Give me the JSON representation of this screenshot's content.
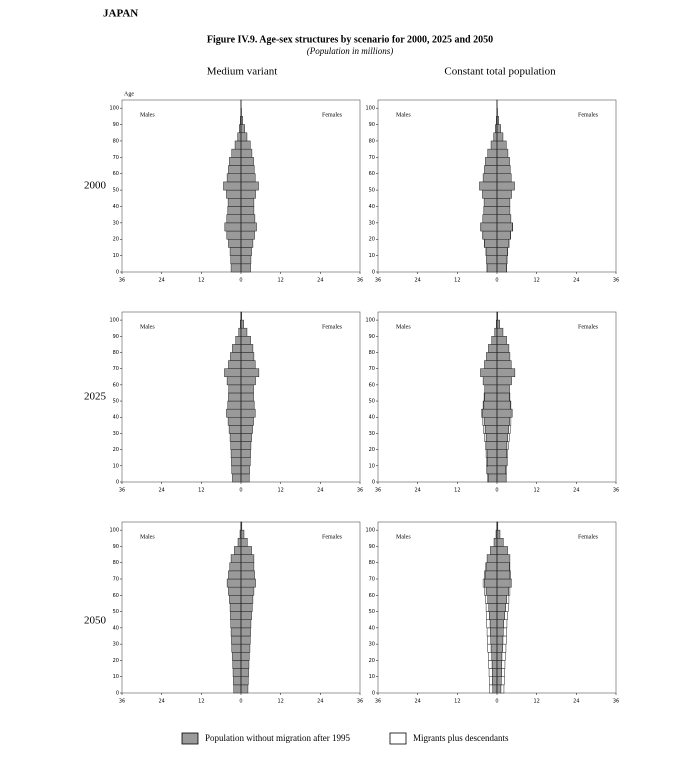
{
  "country": "JAPAN",
  "figure_title": "Figure IV.9.  Age-sex structures by scenario for 2000, 2025 and 2050",
  "subtitle": "(Population in millions)",
  "columns": [
    "Medium variant",
    "Constant total population"
  ],
  "rows": [
    "2000",
    "2025",
    "2050"
  ],
  "legend": [
    {
      "name": "Population without migration after 1995",
      "color": "#9a9a9a"
    },
    {
      "name": "Migrants plus descendants",
      "color": "#ffffff"
    }
  ],
  "chart_data": [
    {
      "type": "pyramid",
      "ylabel": "Age",
      "male_label": "Males",
      "female_label": "Females",
      "y": [
        0,
        5,
        10,
        15,
        20,
        25,
        30,
        35,
        40,
        45,
        50,
        55,
        60,
        65,
        70,
        75,
        80,
        85,
        90,
        95,
        100
      ],
      "males": [
        3.0,
        3.1,
        3.3,
        3.8,
        4.3,
        4.9,
        4.3,
        4.0,
        3.9,
        4.4,
        5.3,
        4.2,
        3.8,
        3.5,
        2.8,
        1.8,
        1.0,
        0.5,
        0.2,
        0.05,
        0.01
      ],
      "females": [
        2.9,
        3.0,
        3.2,
        3.6,
        4.1,
        4.7,
        4.2,
        3.9,
        3.9,
        4.4,
        5.3,
        4.3,
        4.0,
        3.8,
        3.3,
        2.8,
        1.8,
        1.1,
        0.5,
        0.15,
        0.03
      ],
      "xlim": [
        -36,
        36
      ],
      "xticks": [
        {
          "value": -36,
          "label": "36"
        },
        {
          "value": -24,
          "label": "24"
        },
        {
          "value": -12,
          "label": "12"
        },
        0,
        12,
        24,
        36
      ],
      "ylim": [
        0,
        105
      ],
      "yticks": [
        0,
        10,
        20,
        30,
        40,
        50,
        60,
        70,
        80,
        90,
        100
      ]
    },
    {
      "type": "pyramid",
      "male_label": "Males",
      "female_label": "Females",
      "y": [
        0,
        5,
        10,
        15,
        20,
        25,
        30,
        35,
        40,
        45,
        50,
        55,
        60,
        65,
        70,
        75,
        80,
        85,
        90,
        95,
        100
      ],
      "males": [
        3.0,
        3.1,
        3.3,
        3.8,
        4.3,
        4.9,
        4.3,
        4.0,
        3.9,
        4.4,
        5.3,
        4.2,
        3.8,
        3.5,
        2.8,
        1.8,
        1.0,
        0.5,
        0.2,
        0.05,
        0.01
      ],
      "females": [
        2.9,
        3.0,
        3.2,
        3.6,
        4.1,
        4.7,
        4.2,
        3.9,
        3.9,
        4.4,
        5.3,
        4.3,
        4.0,
        3.8,
        3.3,
        2.8,
        1.8,
        1.1,
        0.5,
        0.15,
        0.03
      ],
      "migrant_males": [
        0.05,
        0.05,
        0.05,
        0.05,
        0.05,
        0.05,
        0,
        0,
        0,
        0,
        0,
        0,
        0,
        0,
        0,
        0,
        0,
        0,
        0,
        0,
        0
      ],
      "migrant_females": [
        0.05,
        0.05,
        0.05,
        0.05,
        0.05,
        0.05,
        0,
        0,
        0,
        0,
        0,
        0,
        0,
        0,
        0,
        0,
        0,
        0,
        0,
        0,
        0
      ],
      "xlim": [
        -36,
        36
      ],
      "xticks": [
        {
          "value": -36,
          "label": "36"
        },
        {
          "value": -24,
          "label": "24"
        },
        {
          "value": -12,
          "label": "12"
        },
        0,
        12,
        24,
        36
      ],
      "ylim": [
        0,
        105
      ],
      "yticks": [
        0,
        10,
        20,
        30,
        40,
        50,
        60,
        70,
        80,
        90,
        100
      ]
    },
    {
      "type": "pyramid",
      "male_label": "Males",
      "female_label": "Females",
      "y": [
        0,
        5,
        10,
        15,
        20,
        25,
        30,
        35,
        40,
        45,
        50,
        55,
        60,
        65,
        70,
        75,
        80,
        85,
        90,
        95,
        100
      ],
      "males": [
        2.6,
        2.8,
        2.9,
        3.0,
        3.1,
        3.3,
        3.6,
        3.9,
        4.4,
        4.0,
        3.8,
        3.7,
        4.2,
        5.0,
        3.8,
        3.2,
        2.6,
        1.6,
        0.7,
        0.2,
        0.04
      ],
      "females": [
        2.5,
        2.6,
        2.8,
        2.9,
        3.0,
        3.2,
        3.5,
        3.8,
        4.3,
        4.0,
        3.8,
        3.8,
        4.4,
        5.4,
        4.3,
        3.9,
        3.6,
        2.9,
        1.8,
        0.8,
        0.2
      ],
      "xlim": [
        -36,
        36
      ],
      "xticks": [
        {
          "value": -36,
          "label": "36"
        },
        {
          "value": -24,
          "label": "24"
        },
        {
          "value": -12,
          "label": "12"
        },
        0,
        12,
        24,
        36
      ],
      "ylim": [
        0,
        105
      ],
      "yticks": [
        0,
        10,
        20,
        30,
        40,
        50,
        60,
        70,
        80,
        90,
        100
      ]
    },
    {
      "type": "pyramid",
      "male_label": "Males",
      "female_label": "Females",
      "y": [
        0,
        5,
        10,
        15,
        20,
        25,
        30,
        35,
        40,
        45,
        50,
        55,
        60,
        65,
        70,
        75,
        80,
        85,
        90,
        95,
        100
      ],
      "males": [
        2.6,
        2.8,
        2.9,
        3.0,
        3.1,
        3.3,
        3.6,
        3.9,
        4.4,
        4.0,
        3.8,
        3.7,
        4.2,
        5.0,
        3.8,
        3.2,
        2.6,
        1.6,
        0.7,
        0.2,
        0.04
      ],
      "females": [
        2.5,
        2.6,
        2.8,
        2.9,
        3.0,
        3.2,
        3.5,
        3.8,
        4.3,
        4.0,
        3.8,
        3.8,
        4.4,
        5.4,
        4.3,
        3.9,
        3.6,
        2.9,
        1.8,
        0.8,
        0.2
      ],
      "migrant_males": [
        0.3,
        0.3,
        0.3,
        0.3,
        0.4,
        0.5,
        0.5,
        0.4,
        0.3,
        0.2,
        0.1,
        0,
        0,
        0,
        0,
        0,
        0,
        0,
        0,
        0,
        0
      ],
      "migrant_females": [
        0.3,
        0.3,
        0.3,
        0.3,
        0.4,
        0.5,
        0.5,
        0.4,
        0.3,
        0.2,
        0.1,
        0,
        0,
        0,
        0,
        0,
        0,
        0,
        0,
        0,
        0
      ],
      "xlim": [
        -36,
        36
      ],
      "xticks": [
        {
          "value": -36,
          "label": "36"
        },
        {
          "value": -24,
          "label": "24"
        },
        {
          "value": -12,
          "label": "12"
        },
        0,
        12,
        24,
        36
      ],
      "ylim": [
        0,
        105
      ],
      "yticks": [
        0,
        10,
        20,
        30,
        40,
        50,
        60,
        70,
        80,
        90,
        100
      ]
    },
    {
      "type": "pyramid",
      "male_label": "Males",
      "female_label": "Females",
      "y": [
        0,
        5,
        10,
        15,
        20,
        25,
        30,
        35,
        40,
        45,
        50,
        55,
        60,
        65,
        70,
        75,
        80,
        85,
        90,
        95,
        100
      ],
      "males": [
        2.2,
        2.3,
        2.4,
        2.5,
        2.6,
        2.8,
        2.9,
        3.0,
        3.1,
        3.2,
        3.3,
        3.5,
        3.8,
        4.2,
        3.8,
        3.4,
        3.0,
        2.0,
        0.9,
        0.3,
        0.07
      ],
      "females": [
        2.1,
        2.2,
        2.3,
        2.4,
        2.5,
        2.7,
        2.8,
        2.9,
        3.0,
        3.2,
        3.4,
        3.6,
        3.9,
        4.4,
        4.1,
        3.9,
        3.9,
        3.2,
        1.9,
        0.9,
        0.25
      ],
      "xlim": [
        -36,
        36
      ],
      "xticks": [
        {
          "value": -36,
          "label": "36"
        },
        {
          "value": -24,
          "label": "24"
        },
        {
          "value": -12,
          "label": "12"
        },
        0,
        12,
        24,
        36
      ],
      "ylim": [
        0,
        105
      ],
      "yticks": [
        0,
        10,
        20,
        30,
        40,
        50,
        60,
        70,
        80,
        90,
        100
      ]
    },
    {
      "type": "pyramid",
      "male_label": "Males",
      "female_label": "Females",
      "y": [
        0,
        5,
        10,
        15,
        20,
        25,
        30,
        35,
        40,
        45,
        50,
        55,
        60,
        65,
        70,
        75,
        80,
        85,
        90,
        95,
        100
      ],
      "males": [
        1.3,
        1.4,
        1.4,
        1.5,
        1.6,
        1.8,
        1.9,
        2.0,
        2.1,
        2.3,
        2.5,
        2.8,
        3.3,
        3.8,
        3.6,
        3.3,
        3.0,
        2.0,
        0.9,
        0.3,
        0.07
      ],
      "females": [
        1.2,
        1.3,
        1.4,
        1.4,
        1.5,
        1.7,
        1.8,
        1.9,
        2.0,
        2.3,
        2.6,
        2.9,
        3.5,
        4.0,
        3.9,
        3.8,
        3.9,
        3.2,
        1.9,
        0.9,
        0.25
      ],
      "migrant_males": [
        0.9,
        0.9,
        1.0,
        1.0,
        1.0,
        1.0,
        1.0,
        1.0,
        1.0,
        0.9,
        0.8,
        0.7,
        0.5,
        0.4,
        0.2,
        0.1,
        0,
        0,
        0,
        0,
        0
      ],
      "migrant_females": [
        0.9,
        0.9,
        0.9,
        1.0,
        1.0,
        1.0,
        1.0,
        1.0,
        1.0,
        0.9,
        0.8,
        0.7,
        0.4,
        0.4,
        0.2,
        0.1,
        0,
        0,
        0,
        0,
        0
      ],
      "xlim": [
        -36,
        36
      ],
      "xticks": [
        {
          "value": -36,
          "label": "36"
        },
        {
          "value": -24,
          "label": "24"
        },
        {
          "value": -12,
          "label": "12"
        },
        0,
        12,
        24,
        36
      ],
      "ylim": [
        0,
        105
      ],
      "yticks": [
        0,
        10,
        20,
        30,
        40,
        50,
        60,
        70,
        80,
        90,
        100
      ]
    }
  ]
}
